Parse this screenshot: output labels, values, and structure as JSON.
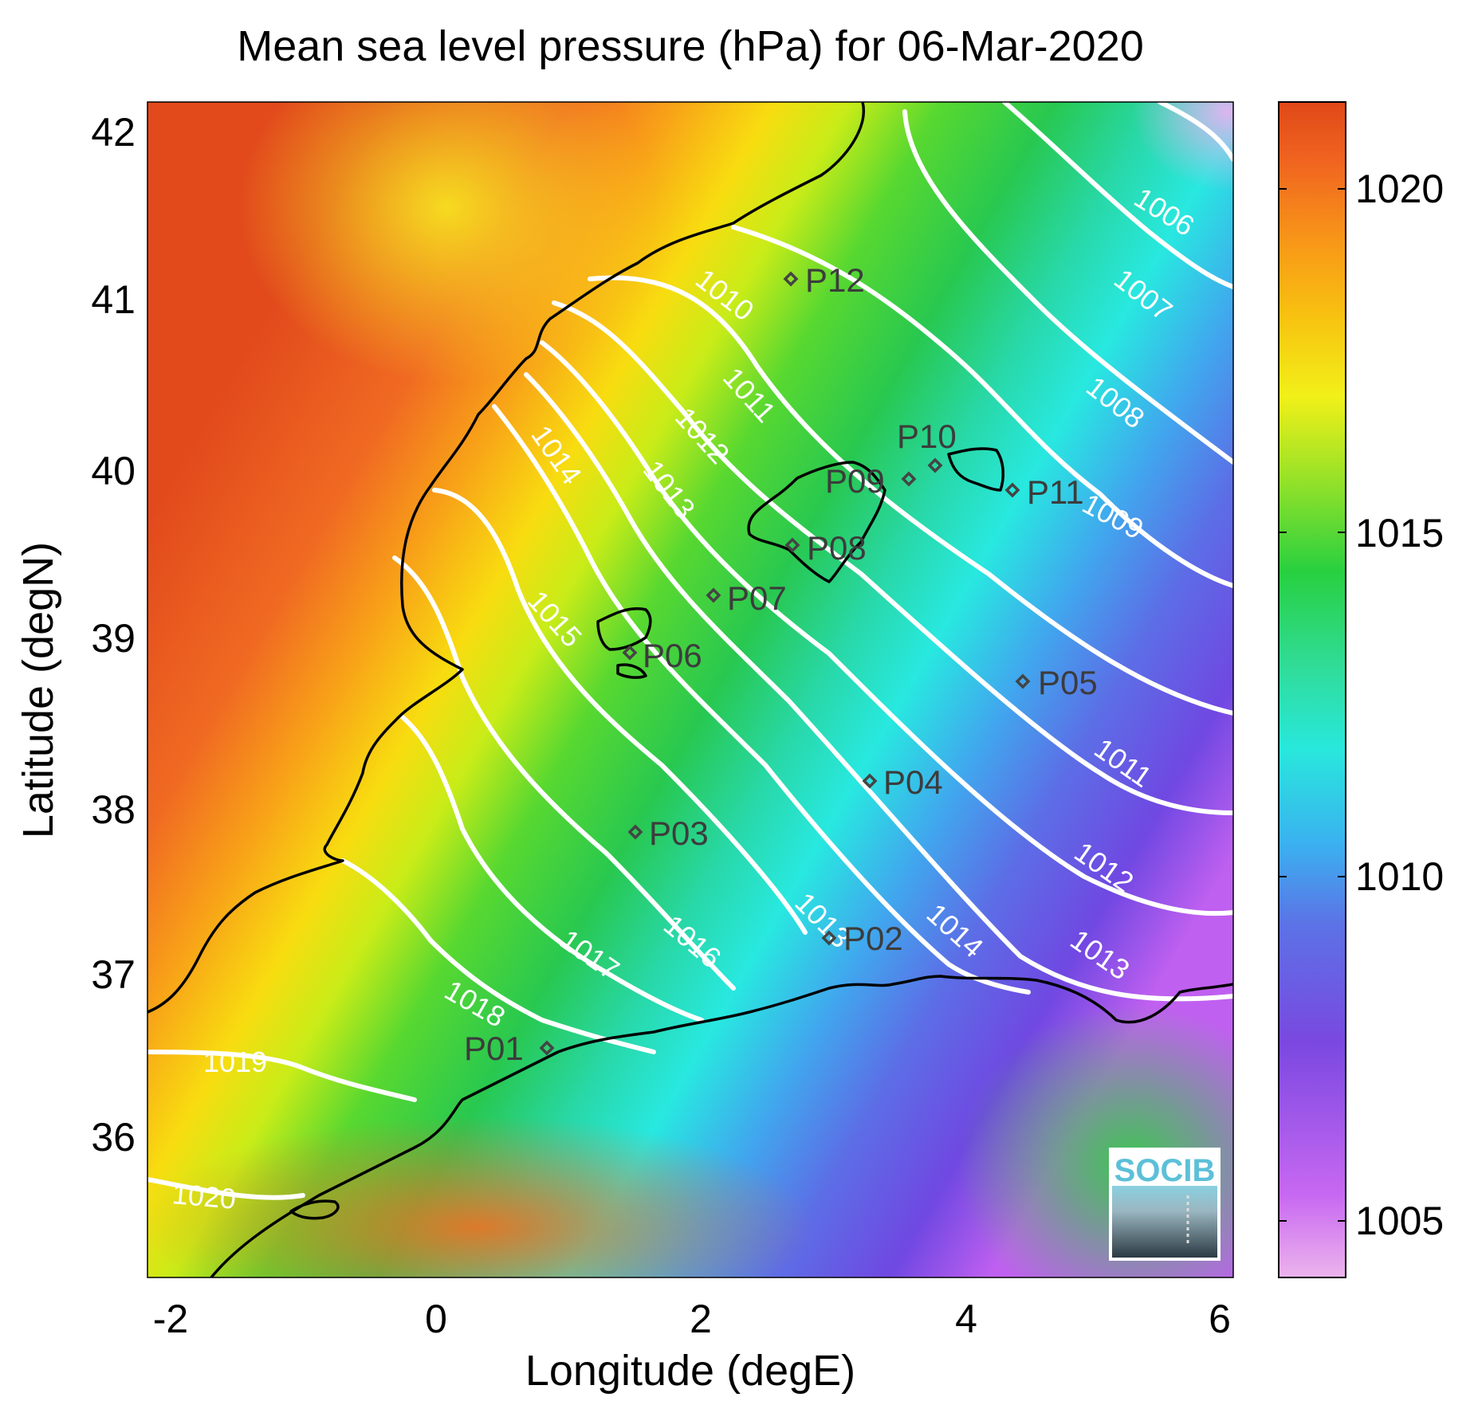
{
  "title": "Mean sea level pressure (hPa) for 06-Mar-2020",
  "chart_data": {
    "type": "heatmap",
    "title": "Mean sea level pressure (hPa) for 06-Mar-2020",
    "xlabel": "Longitude (degE)",
    "ylabel": "Latitude (degN)",
    "xlim": [
      -2.2,
      6.0
    ],
    "ylim": [
      35.15,
      42.15
    ],
    "xticks": [
      "-2",
      "0",
      "2",
      "4",
      "6"
    ],
    "yticks": [
      "36",
      "37",
      "38",
      "39",
      "40",
      "41",
      "42"
    ],
    "colorbar": {
      "range": [
        1004,
        1021
      ],
      "ticks": [
        "1005",
        "1010",
        "1015",
        "1020"
      ],
      "colormap": [
        "#e8a8e8",
        "#b050f0",
        "#7848e0",
        "#5878e8",
        "#38b8f0",
        "#28e8d8",
        "#30d890",
        "#28d040",
        "#90e028",
        "#f0f018",
        "#f8c010",
        "#f89818",
        "#f06020",
        "#e04818"
      ]
    },
    "contours": [
      {
        "level": 1006,
        "label": "1006"
      },
      {
        "level": 1007,
        "label": "1007"
      },
      {
        "level": 1008,
        "label": "1008"
      },
      {
        "level": 1009,
        "label": "1009"
      },
      {
        "level": 1010,
        "label": "1010"
      },
      {
        "level": 1011,
        "label": "1011"
      },
      {
        "level": 1012,
        "label": "1012"
      },
      {
        "level": 1013,
        "label": "1013"
      },
      {
        "level": 1014,
        "label": "1014"
      },
      {
        "level": 1015,
        "label": "1015"
      },
      {
        "level": 1016,
        "label": "1016"
      },
      {
        "level": 1017,
        "label": "1017"
      },
      {
        "level": 1018,
        "label": "1018"
      },
      {
        "level": 1019,
        "label": "1019"
      },
      {
        "level": 1020,
        "label": "1020"
      }
    ],
    "stations": [
      {
        "name": "P01",
        "lon": 0.85,
        "lat": 36.5
      },
      {
        "name": "P02",
        "lon": 3.0,
        "lat": 37.15
      },
      {
        "name": "P03",
        "lon": 1.5,
        "lat": 37.8
      },
      {
        "name": "P04",
        "lon": 3.3,
        "lat": 38.1
      },
      {
        "name": "P05",
        "lon": 4.45,
        "lat": 38.7
      },
      {
        "name": "P06",
        "lon": 1.45,
        "lat": 38.85
      },
      {
        "name": "P07",
        "lon": 2.1,
        "lat": 39.2
      },
      {
        "name": "P08",
        "lon": 2.7,
        "lat": 39.5
      },
      {
        "name": "P09",
        "lon": 3.15,
        "lat": 39.9
      },
      {
        "name": "P10",
        "lon": 3.8,
        "lat": 40.0
      },
      {
        "name": "P11",
        "lon": 4.4,
        "lat": 39.85
      },
      {
        "name": "P12",
        "lon": 2.7,
        "lat": 41.1
      }
    ]
  },
  "logo": {
    "text": "SOCIB"
  }
}
